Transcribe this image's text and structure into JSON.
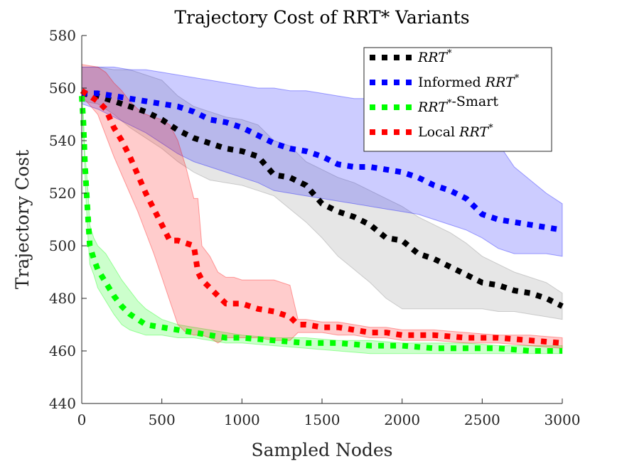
{
  "chart_data": {
    "type": "line",
    "title": "Trajectory Cost of RRT* Variants",
    "xlabel": "Sampled Nodes",
    "ylabel": "Trajectory Cost",
    "xlim": [
      0,
      3000
    ],
    "ylim": [
      440,
      580
    ],
    "xticks": [
      0,
      500,
      1000,
      1500,
      2000,
      2500,
      3000
    ],
    "yticks": [
      440,
      460,
      480,
      500,
      520,
      540,
      560,
      580
    ],
    "legend_position": "top-right",
    "legend": [
      {
        "series": "RRT*",
        "parts": [
          {
            "text": "RRT",
            "italic": true
          },
          {
            "text": "*",
            "sup": true,
            "italic": true
          }
        ]
      },
      {
        "series": "Informed RRT*",
        "parts": [
          {
            "text": "Informed ",
            "italic": false
          },
          {
            "text": "RRT",
            "italic": true
          },
          {
            "text": "*",
            "sup": true,
            "italic": true
          }
        ]
      },
      {
        "series": "RRT*-Smart",
        "parts": [
          {
            "text": "RRT",
            "italic": true
          },
          {
            "text": "*",
            "sup": true,
            "italic": true
          },
          {
            "text": "-Smart",
            "italic": false
          }
        ]
      },
      {
        "series": "Local RRT*",
        "parts": [
          {
            "text": "Local ",
            "italic": false
          },
          {
            "text": "RRT",
            "italic": true
          },
          {
            "text": "*",
            "sup": true,
            "italic": true
          }
        ]
      }
    ],
    "series": [
      {
        "name": "RRT*",
        "color": "#000000",
        "band_color": "#808080",
        "x": [
          0,
          100,
          200,
          300,
          400,
          500,
          600,
          700,
          800,
          900,
          1000,
          1100,
          1200,
          1300,
          1400,
          1500,
          1600,
          1700,
          1800,
          1900,
          2000,
          2100,
          2200,
          2300,
          2400,
          2500,
          2600,
          2700,
          2800,
          2900,
          3000
        ],
        "values": [
          558,
          557,
          555,
          553,
          551,
          548,
          544,
          541,
          539,
          537,
          536,
          534,
          527,
          526,
          523,
          516,
          513,
          511,
          508,
          503,
          502,
          497,
          495,
          492,
          489,
          486,
          485,
          483,
          482,
          480,
          477
        ],
        "upper": [
          568,
          568,
          567,
          567,
          565,
          563,
          557,
          553,
          551,
          549,
          548,
          546,
          540,
          538,
          532,
          529,
          526,
          524,
          521,
          518,
          515,
          511,
          508,
          505,
          501,
          496,
          493,
          490,
          488,
          486,
          482
        ],
        "lower": [
          555,
          554,
          550,
          545,
          541,
          537,
          532,
          528,
          525,
          524,
          523,
          521,
          519,
          514,
          509,
          503,
          496,
          491,
          486,
          480,
          476,
          476,
          476,
          476,
          476,
          476,
          475,
          475,
          474,
          473,
          472
        ]
      },
      {
        "name": "Informed RRT*",
        "color": "#0000ff",
        "band_color": "#0000ff",
        "x": [
          0,
          100,
          200,
          300,
          400,
          500,
          600,
          700,
          800,
          900,
          1000,
          1100,
          1200,
          1300,
          1400,
          1500,
          1600,
          1700,
          1800,
          1900,
          2000,
          2100,
          2200,
          2300,
          2400,
          2500,
          2600,
          2700,
          2800,
          2900,
          3000
        ],
        "values": [
          558,
          558,
          557,
          556,
          555,
          554,
          553,
          551,
          548,
          547,
          545,
          542,
          539,
          537,
          536,
          534,
          531,
          530,
          530,
          529,
          528,
          526,
          523,
          521,
          518,
          512,
          510,
          509,
          508,
          507,
          506
        ],
        "upper": [
          568,
          568,
          568,
          567,
          567,
          566,
          565,
          564,
          563,
          562,
          561,
          560,
          560,
          559,
          559,
          558,
          557,
          556,
          556,
          555,
          554,
          553,
          552,
          550,
          547,
          543,
          539,
          530,
          525,
          520,
          516
        ],
        "lower": [
          554,
          552,
          549,
          546,
          543,
          539,
          535,
          532,
          530,
          528,
          526,
          524,
          521,
          520,
          519,
          518,
          517,
          516,
          515,
          514,
          513,
          512,
          510,
          508,
          506,
          503,
          499,
          497,
          497,
          497,
          496
        ]
      },
      {
        "name": "RRT*-Smart",
        "color": "#00ff00",
        "band_color": "#00ff00",
        "x": [
          0,
          10,
          20,
          30,
          40,
          50,
          75,
          100,
          150,
          200,
          250,
          300,
          350,
          400,
          500,
          600,
          700,
          800,
          900,
          1000,
          1200,
          1400,
          1600,
          1800,
          2000,
          2200,
          2400,
          2600,
          2800,
          3000
        ],
        "values": [
          557,
          547,
          531,
          520,
          510,
          500,
          495,
          491,
          486,
          481,
          477,
          474,
          472,
          470,
          469,
          468,
          467,
          466,
          465,
          465,
          464,
          463,
          463,
          462,
          462,
          461,
          461,
          461,
          460,
          460
        ],
        "upper": [
          557,
          550,
          535,
          528,
          520,
          508,
          503,
          500,
          497,
          492,
          487,
          483,
          479,
          476,
          472,
          470,
          469,
          468,
          467,
          466,
          465,
          465,
          464,
          464,
          463,
          463,
          463,
          462,
          462,
          462
        ],
        "lower": [
          557,
          543,
          527,
          513,
          502,
          493,
          489,
          484,
          479,
          474,
          470,
          468,
          467,
          466,
          466,
          465,
          465,
          464,
          463,
          463,
          462,
          461,
          460,
          459,
          459,
          459,
          459,
          459,
          459,
          459
        ]
      },
      {
        "name": "Local RRT*",
        "color": "#ff0000",
        "band_color": "#ff0000",
        "x": [
          0,
          100,
          150,
          200,
          250,
          300,
          350,
          400,
          450,
          500,
          550,
          600,
          650,
          700,
          725,
          750,
          800,
          850,
          900,
          950,
          1000,
          1100,
          1200,
          1300,
          1350,
          1400,
          1500,
          1600,
          1700,
          1800,
          1900,
          2000,
          2200,
          2400,
          2600,
          2800,
          3000
        ],
        "values": [
          559,
          555,
          552,
          545,
          540,
          534,
          527,
          520,
          514,
          508,
          502,
          502,
          501,
          500,
          490,
          487,
          484,
          481,
          478,
          478,
          478,
          476,
          475,
          473,
          470,
          470,
          469,
          469,
          468,
          467,
          467,
          466,
          466,
          465,
          465,
          464,
          463
        ],
        "upper": [
          569,
          568,
          566,
          562,
          559,
          555,
          552,
          550,
          549,
          548,
          546,
          540,
          530,
          518,
          518,
          500,
          496,
          490,
          488,
          488,
          487,
          487,
          487,
          485,
          472,
          472,
          471,
          471,
          470,
          469,
          469,
          468,
          468,
          467,
          466,
          466,
          465
        ],
        "lower": [
          557,
          550,
          542,
          534,
          527,
          520,
          513,
          505,
          497,
          488,
          479,
          470,
          467,
          466,
          466,
          466,
          465,
          463,
          465,
          465,
          465,
          465,
          464,
          464,
          467,
          467,
          467,
          466,
          466,
          465,
          465,
          464,
          464,
          463,
          463,
          462,
          461
        ]
      }
    ]
  }
}
